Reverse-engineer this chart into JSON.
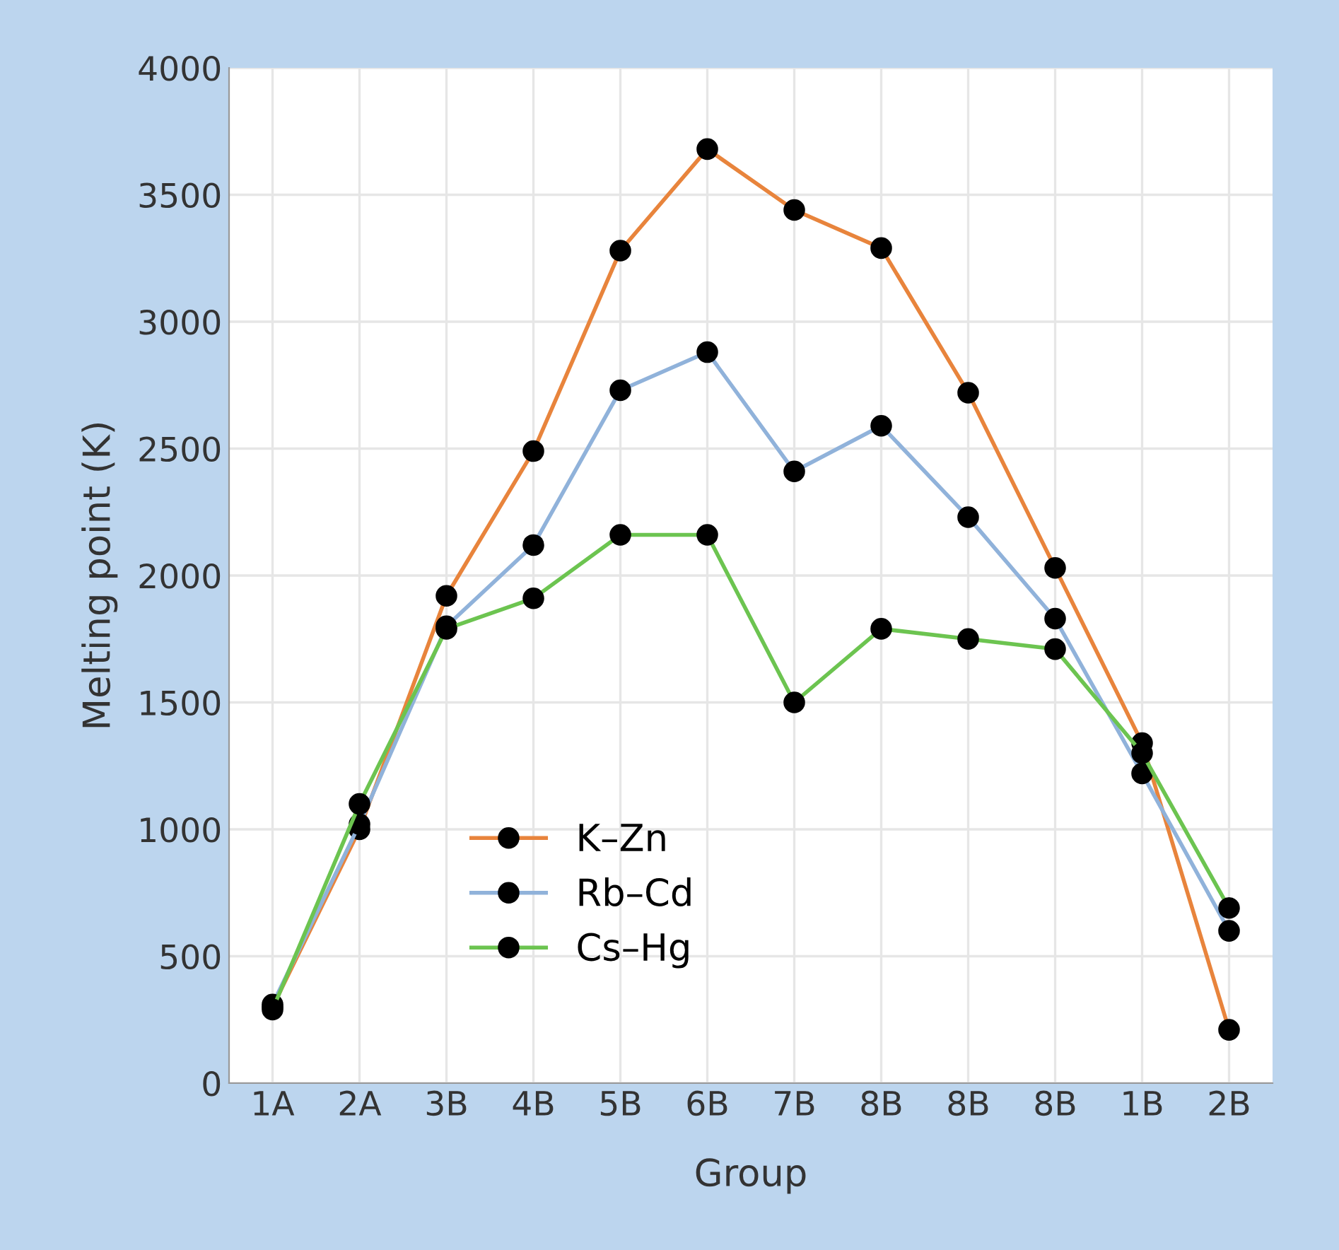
{
  "chart_data": {
    "type": "line",
    "xlabel": "Group",
    "ylabel": "Melting point (K)",
    "categories": [
      "1A",
      "2A",
      "3B",
      "4B",
      "5B",
      "6B",
      "7B",
      "8B",
      "8B",
      "8B",
      "1B",
      "2B"
    ],
    "series": [
      {
        "name": "K–Zn",
        "color": "#e8843c",
        "values": [
          300,
          1000,
          1920,
          2490,
          3280,
          3680,
          3440,
          3290,
          2720,
          2030,
          1340,
          210
        ]
      },
      {
        "name": "Rb–Cd",
        "color": "#90b2da",
        "values": [
          310,
          1020,
          1800,
          2120,
          2730,
          2880,
          2410,
          2590,
          2230,
          1830,
          1220,
          600
        ]
      },
      {
        "name": "Cs–Hg",
        "color": "#6cc450",
        "values": [
          290,
          1100,
          1790,
          1910,
          2160,
          2160,
          1500,
          1790,
          1750,
          1710,
          1300,
          690
        ]
      }
    ],
    "ylim": [
      0,
      4000
    ],
    "yticks": [
      0,
      500,
      1000,
      1500,
      2000,
      2500,
      3000,
      3500,
      4000
    ],
    "grid": true,
    "legend": "bottom left",
    "marker": "circle",
    "line_style": "solid"
  }
}
